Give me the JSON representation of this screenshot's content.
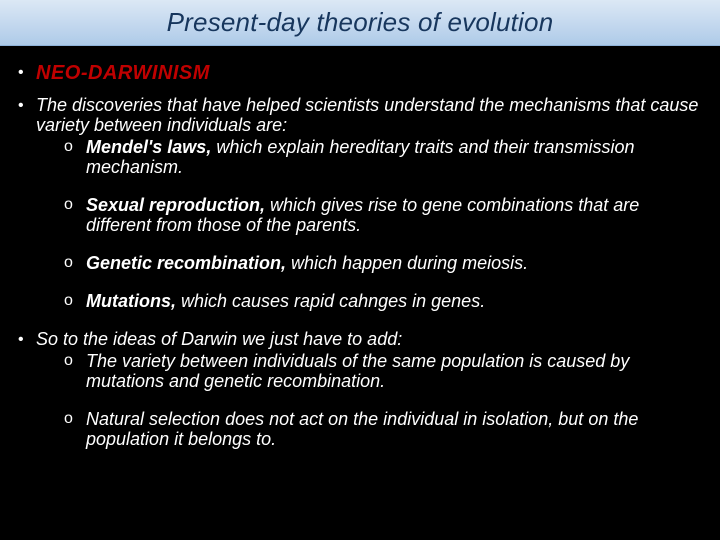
{
  "title": "Present-day theories of evolution",
  "heading": "NEO-DARWINISM",
  "intro": "The discoveries that have helped scientists understand the mechanisms that cause variety between individuals are:",
  "discoveries": [
    {
      "term": "Mendel's laws,",
      "rest": " which explain hereditary traits and their transmission mechanism."
    },
    {
      "term": "Sexual reproduction,",
      "rest": " which gives rise to gene combinations that are different from those of the parents."
    },
    {
      "term": "Genetic recombination,",
      "rest": " which happen during meiosis."
    },
    {
      "term": "Mutations,",
      "rest": " which causes rapid cahnges in genes."
    }
  ],
  "so_intro": "So to the ideas of Darwin we just have to add:",
  "additions": [
    "The variety between individuals of the same population is caused by mutations and genetic recombination.",
    "Natural selection does not act on the individual in isolation, but on the population it belongs to."
  ],
  "colors": {
    "title_text": "#17365d",
    "heading_text": "#c00000",
    "body_text": "#ffffff",
    "background": "#000000"
  }
}
